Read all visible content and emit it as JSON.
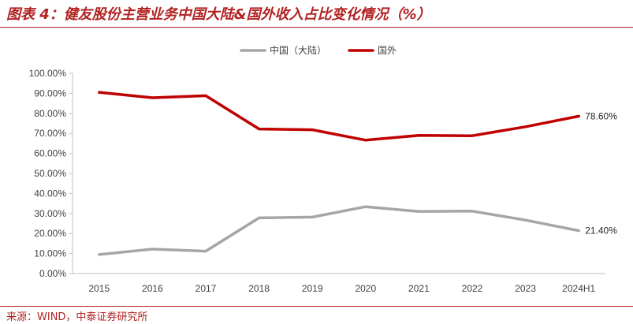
{
  "header": {
    "title": "图表 4：健友股份主营业务中国大陆&国外收入占比变化情况（%）"
  },
  "footer": {
    "source": "来源：WIND，中泰证券研究所"
  },
  "colors": {
    "accent": "#b22222",
    "series_cn": "#a6a6a6",
    "series_foreign": "#c00000"
  },
  "chart_data": {
    "type": "line",
    "categories": [
      "2015",
      "2016",
      "2017",
      "2018",
      "2019",
      "2020",
      "2021",
      "2022",
      "2023",
      "2024H1"
    ],
    "series": [
      {
        "name": "中国（大陆）",
        "values": [
          9.5,
          12.2,
          11.2,
          27.8,
          28.2,
          33.4,
          31.0,
          31.2,
          26.7,
          21.4
        ]
      },
      {
        "name": "国外",
        "values": [
          90.5,
          87.8,
          88.8,
          72.2,
          71.8,
          66.6,
          69.0,
          68.8,
          73.3,
          78.6
        ]
      }
    ],
    "yticks": [
      "0.00%",
      "10.00%",
      "20.00%",
      "30.00%",
      "40.00%",
      "50.00%",
      "60.00%",
      "70.00%",
      "80.00%",
      "90.00%",
      "100.00%"
    ],
    "ylim": [
      0,
      100
    ],
    "end_labels": [
      "21.40%",
      "78.60%"
    ],
    "legend_position": "top-center",
    "grid": false
  }
}
